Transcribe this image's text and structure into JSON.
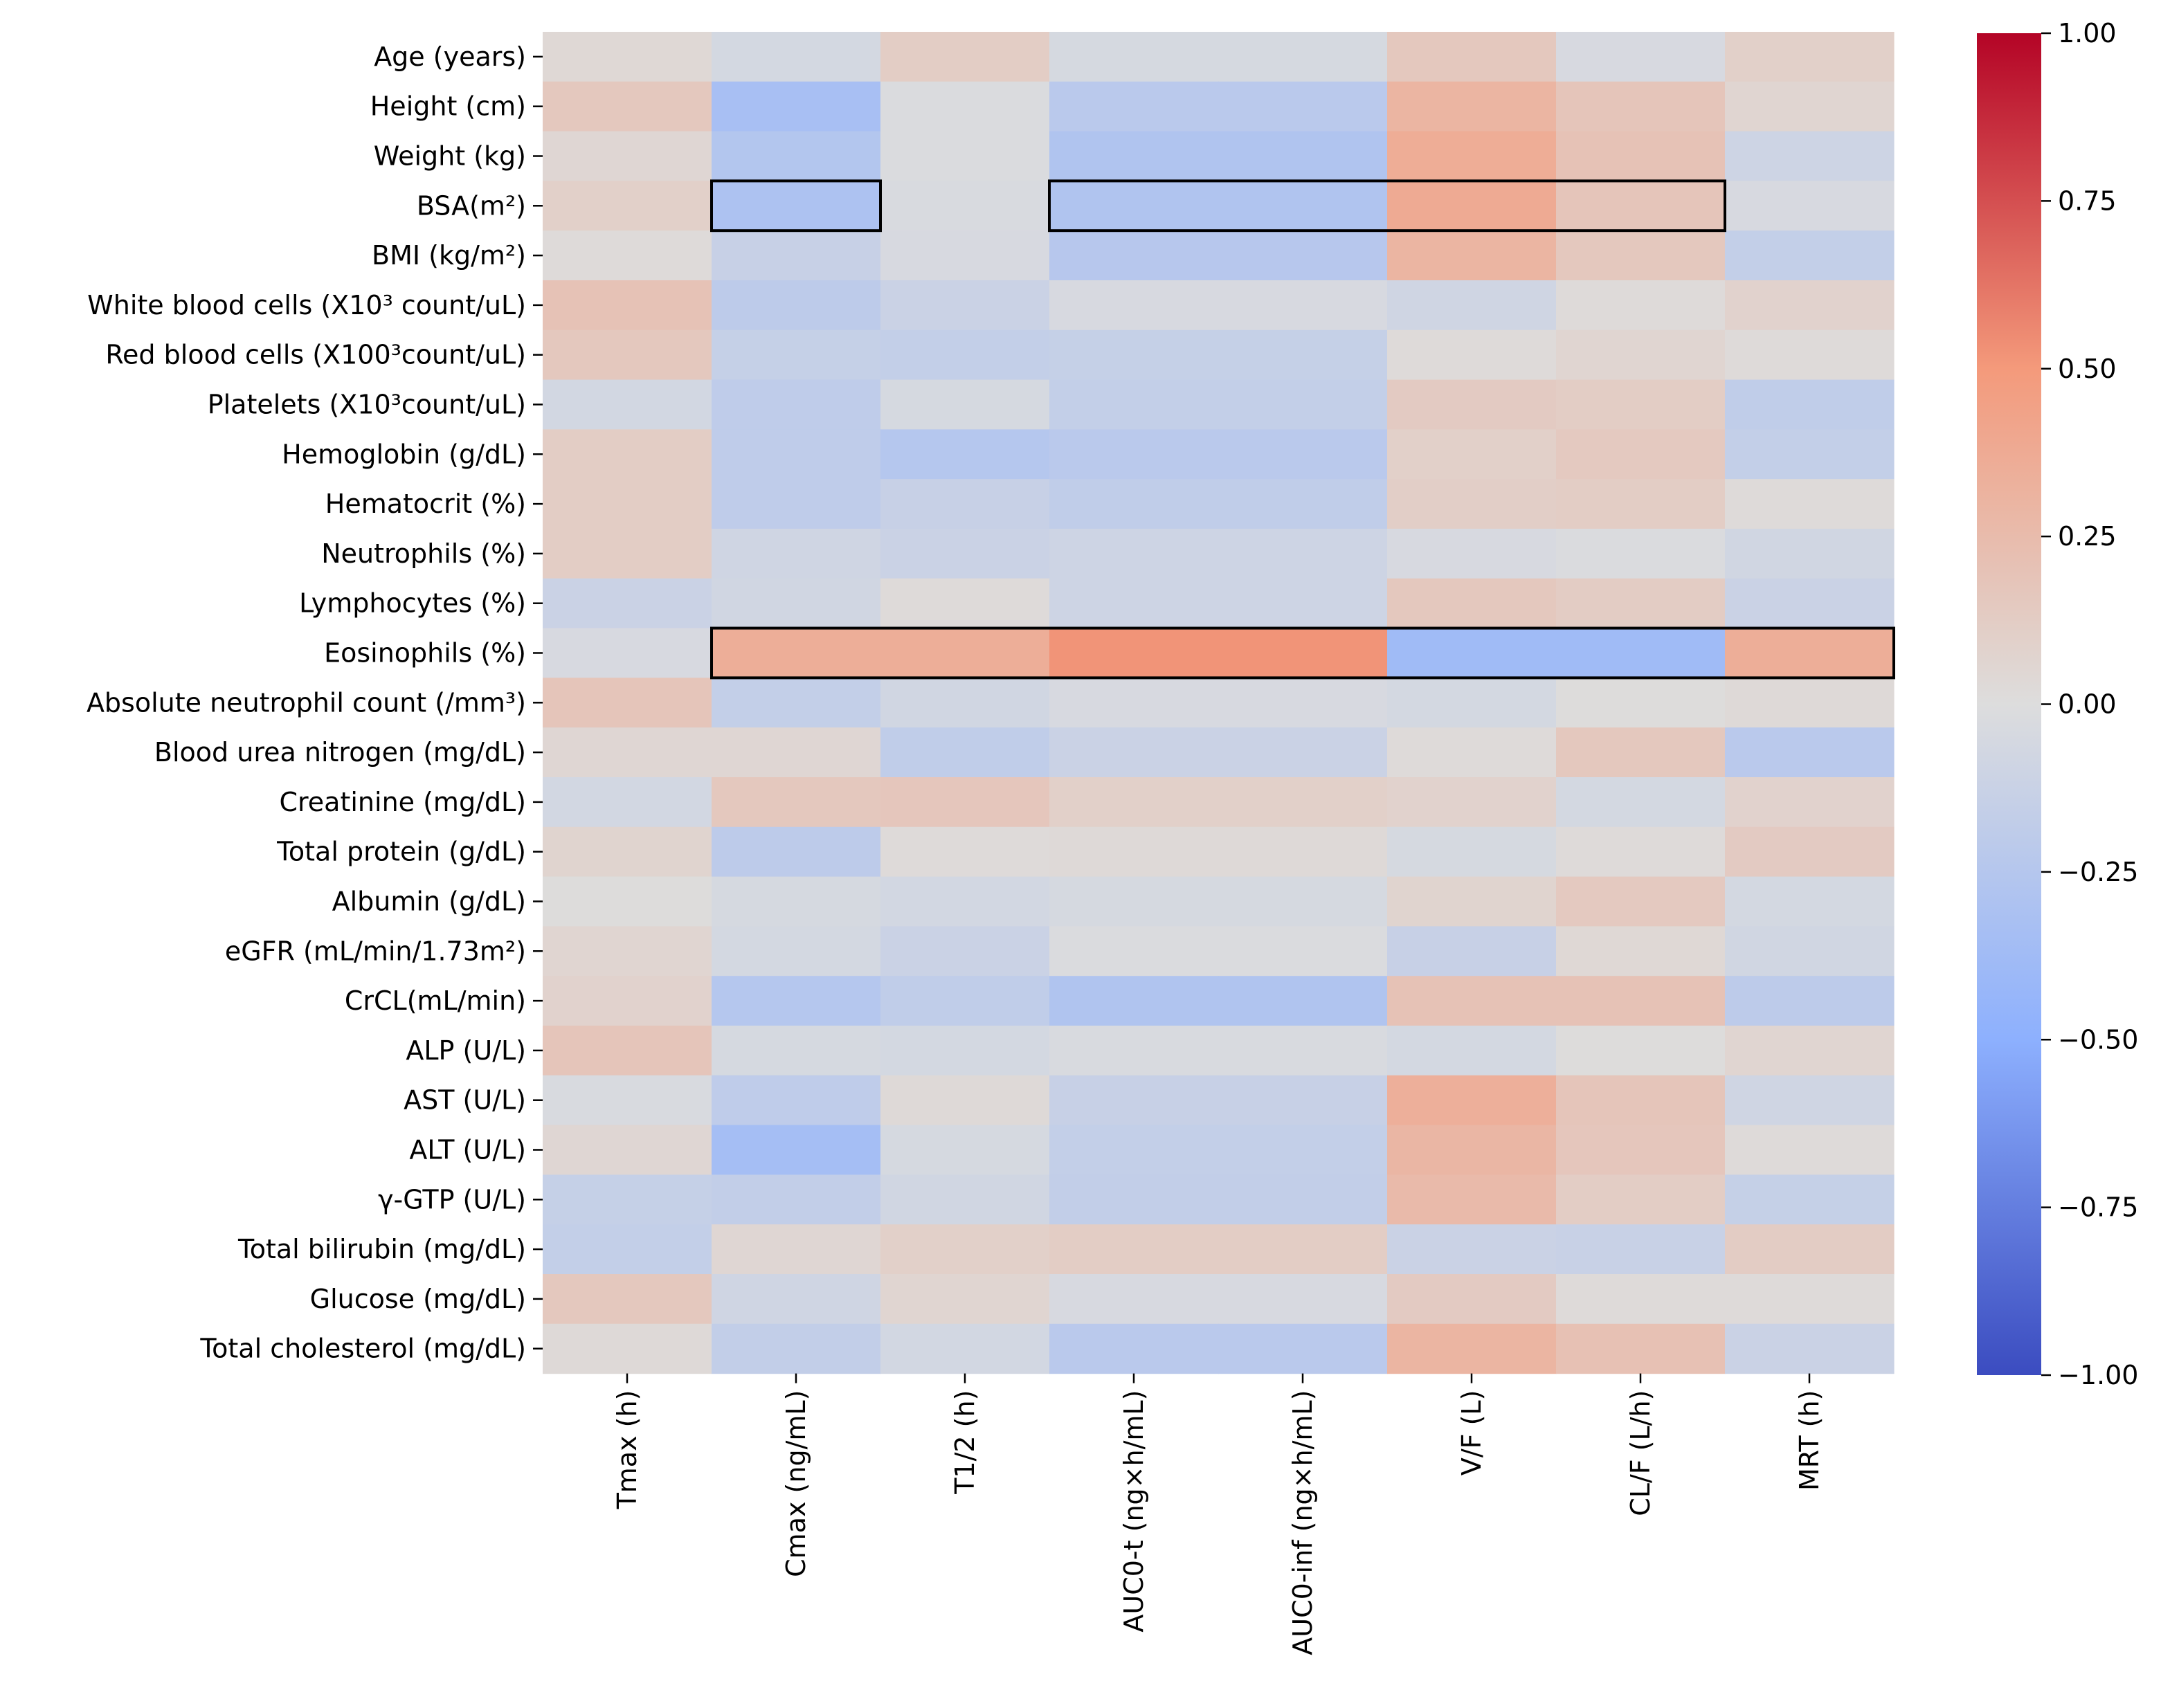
{
  "chart_data": {
    "type": "heatmap",
    "title": "",
    "xlabel": "",
    "ylabel": "",
    "rows": [
      "Age (years)",
      "Height (cm)",
      "Weight (kg)",
      "BSA(m²)",
      "BMI (kg/m²)",
      "White blood cells (X10³ count/uL)",
      "Red blood cells (X100³count/uL)",
      "Platelets (X10³count/uL)",
      "Hemoglobin (g/dL)",
      "Hematocrit (%)",
      "Neutrophils (%)",
      "Lymphocytes (%)",
      "Eosinophils (%)",
      "Absolute neutrophil count (/mm³)",
      "Blood urea nitrogen (mg/dL)",
      "Creatinine (mg/dL)",
      "Total protein (g/dL)",
      "Albumin (g/dL)",
      "eGFR (mL/min/1.73m²)",
      "CrCL(mL/min)",
      "ALP (U/L)",
      "AST (U/L)",
      "ALT (U/L)",
      "γ-GTP (U/L)",
      "Total bilirubin (mg/dL)",
      "Glucose (mg/dL)",
      "Total cholesterol (mg/dL)"
    ],
    "columns": [
      "Tmax (h)",
      "Cmax (ng/mL)",
      "T1/2 (h)",
      "AUC0-t (ng×h/mL)",
      "AUC0-inf (ng×h/mL)",
      "V/F (L)",
      "CL/F (L/h)",
      "MRT (h)"
    ],
    "values": [
      [
        0.04,
        -0.06,
        0.12,
        -0.05,
        -0.05,
        0.16,
        -0.04,
        0.1
      ],
      [
        0.16,
        -0.33,
        -0.02,
        -0.22,
        -0.22,
        0.3,
        0.18,
        0.06
      ],
      [
        0.05,
        -0.26,
        -0.02,
        -0.28,
        -0.28,
        0.36,
        0.2,
        -0.1
      ],
      [
        0.1,
        -0.3,
        -0.03,
        -0.28,
        -0.28,
        0.38,
        0.18,
        -0.04
      ],
      [
        0.02,
        -0.14,
        -0.04,
        -0.24,
        -0.24,
        0.3,
        0.16,
        -0.16
      ],
      [
        0.2,
        -0.2,
        -0.12,
        -0.04,
        -0.04,
        -0.09,
        0.02,
        0.08
      ],
      [
        0.16,
        -0.15,
        -0.16,
        -0.15,
        -0.15,
        0.02,
        0.06,
        0.02
      ],
      [
        -0.07,
        -0.19,
        -0.05,
        -0.16,
        -0.16,
        0.14,
        0.12,
        -0.18
      ],
      [
        0.12,
        -0.19,
        -0.25,
        -0.22,
        -0.22,
        0.1,
        0.15,
        -0.16
      ],
      [
        0.12,
        -0.19,
        -0.14,
        -0.18,
        -0.18,
        0.11,
        0.12,
        0.02
      ],
      [
        0.12,
        -0.09,
        -0.12,
        -0.1,
        -0.1,
        -0.04,
        -0.02,
        -0.08
      ],
      [
        -0.12,
        -0.08,
        0.02,
        -0.1,
        -0.1,
        0.16,
        0.13,
        -0.12
      ],
      [
        -0.04,
        0.35,
        0.35,
        0.52,
        0.52,
        -0.38,
        -0.38,
        0.35
      ],
      [
        0.18,
        -0.16,
        -0.08,
        -0.04,
        -0.04,
        -0.06,
        0.01,
        0.03
      ],
      [
        0.05,
        0.05,
        -0.18,
        -0.12,
        -0.12,
        0.02,
        0.16,
        -0.22
      ],
      [
        -0.07,
        0.16,
        0.17,
        0.1,
        0.1,
        0.08,
        -0.06,
        0.08
      ],
      [
        0.07,
        -0.2,
        0.02,
        0.03,
        0.03,
        -0.05,
        0.02,
        0.14
      ],
      [
        0.01,
        -0.05,
        -0.07,
        -0.05,
        -0.05,
        0.07,
        0.15,
        -0.06
      ],
      [
        0.06,
        -0.06,
        -0.12,
        -0.02,
        -0.02,
        -0.14,
        0.04,
        -0.08
      ],
      [
        0.08,
        -0.25,
        -0.18,
        -0.28,
        -0.28,
        0.2,
        0.2,
        -0.2
      ],
      [
        0.18,
        -0.05,
        -0.06,
        -0.03,
        -0.03,
        -0.06,
        0.01,
        0.06
      ],
      [
        -0.03,
        -0.19,
        0.03,
        -0.14,
        -0.14,
        0.34,
        0.18,
        -0.09
      ],
      [
        0.05,
        -0.35,
        -0.05,
        -0.16,
        -0.16,
        0.29,
        0.17,
        0.02
      ],
      [
        -0.15,
        -0.17,
        -0.08,
        -0.17,
        -0.17,
        0.26,
        0.12,
        -0.15
      ],
      [
        -0.16,
        0.05,
        0.1,
        0.12,
        0.12,
        -0.12,
        -0.13,
        0.13
      ],
      [
        0.16,
        -0.09,
        0.06,
        -0.04,
        -0.04,
        0.14,
        0.02,
        0.02
      ],
      [
        0.03,
        -0.17,
        -0.07,
        -0.22,
        -0.22,
        0.3,
        0.21,
        -0.12
      ]
    ],
    "colorbar": {
      "min": -1.0,
      "max": 1.0,
      "ticks": [
        "1.00",
        "0.75",
        "0.50",
        "0.25",
        "0.00",
        "−0.25",
        "−0.50",
        "−0.75",
        "−1.00"
      ],
      "tick_values": [
        1.0,
        0.75,
        0.5,
        0.25,
        0.0,
        -0.25,
        -0.5,
        -0.75,
        -1.0
      ],
      "colormap": "coolwarm"
    },
    "highlights": [
      {
        "row": "BSA(m²)",
        "from_column": "Cmax (ng/mL)",
        "to_column": "Cmax (ng/mL)"
      },
      {
        "row": "BSA(m²)",
        "from_column": "AUC0-t (ng×h/mL)",
        "to_column": "CL/F (L/h)"
      },
      {
        "row": "Eosinophils (%)",
        "from_column": "Cmax (ng/mL)",
        "to_column": "MRT (h)"
      }
    ],
    "colors": {
      "neg_end": "#3b4cc0",
      "mid": "#dddddd",
      "pos_end": "#b40426",
      "highlight_border": "#000000"
    }
  }
}
